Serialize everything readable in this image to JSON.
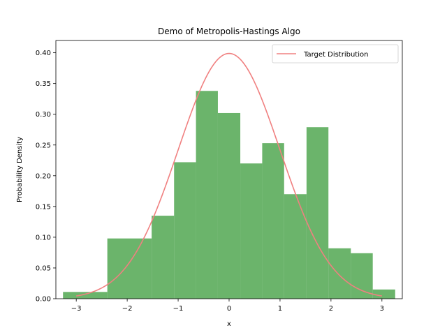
{
  "chart_data": {
    "type": "bar",
    "title": "Demo of Metropolis-Hastings Algo",
    "xlabel": "x",
    "ylabel": "Probability Density",
    "xlim": [
      -3.4,
      3.4
    ],
    "ylim": [
      0,
      0.42
    ],
    "xticks": [
      -3,
      -2,
      -1,
      0,
      1,
      2,
      3
    ],
    "xtick_labels": [
      "−3",
      "−2",
      "−1",
      "0",
      "1",
      "2",
      "3"
    ],
    "yticks": [
      0.0,
      0.05,
      0.1,
      0.15,
      0.2,
      0.25,
      0.3,
      0.35,
      0.4
    ],
    "ytick_labels": [
      "0.00",
      "0.05",
      "0.10",
      "0.15",
      "0.20",
      "0.25",
      "0.30",
      "0.35",
      "0.40"
    ],
    "grid": false,
    "histogram": {
      "color": "#3a9b3a",
      "opacity": 0.75,
      "bins": [
        {
          "x0": -3.26,
          "x1": -2.39,
          "y": 0.011
        },
        {
          "x0": -2.39,
          "x1": -1.52,
          "y": 0.098
        },
        {
          "x0": -1.52,
          "x1": -1.08,
          "y": 0.135
        },
        {
          "x0": -1.08,
          "x1": -0.65,
          "y": 0.222
        },
        {
          "x0": -0.65,
          "x1": -0.22,
          "y": 0.338
        },
        {
          "x0": -0.22,
          "x1": 0.22,
          "y": 0.302
        },
        {
          "x0": 0.22,
          "x1": 0.65,
          "y": 0.22
        },
        {
          "x0": 0.65,
          "x1": 1.08,
          "y": 0.253
        },
        {
          "x0": 1.08,
          "x1": 1.52,
          "y": 0.17
        },
        {
          "x0": 1.52,
          "x1": 1.95,
          "y": 0.279
        },
        {
          "x0": 1.95,
          "x1": 2.39,
          "y": 0.082
        },
        {
          "x0": 2.39,
          "x1": 2.82,
          "y": 0.074
        },
        {
          "x0": 2.82,
          "x1": 3.26,
          "y": 0.015
        }
      ]
    },
    "series": [
      {
        "name": "Target Distribution",
        "type": "line",
        "color": "#f08080",
        "x_range": [
          -3,
          3
        ],
        "function": "standard normal pdf"
      }
    ],
    "legend": {
      "position": "top-right"
    }
  }
}
